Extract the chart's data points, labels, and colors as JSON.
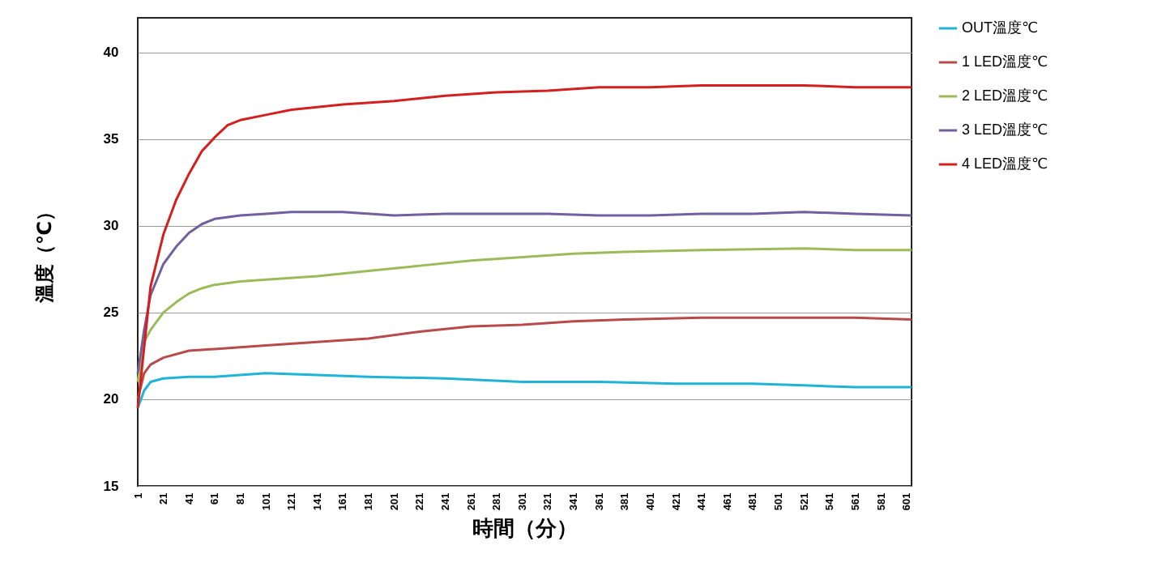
{
  "chart_data": {
    "type": "line",
    "xlabel": "時間（分）",
    "ylabel": "溫度（℃）",
    "xlim": [
      1,
      605
    ],
    "xticks": [
      1,
      21,
      41,
      61,
      81,
      101,
      121,
      141,
      161,
      181,
      201,
      221,
      241,
      261,
      281,
      301,
      321,
      341,
      361,
      381,
      401,
      421,
      441,
      461,
      481,
      501,
      521,
      541,
      561,
      581,
      601
    ],
    "ylim": [
      15,
      42
    ],
    "yticks": [
      15,
      20,
      25,
      30,
      35,
      40
    ],
    "grid": "y",
    "legend": "right",
    "marker": "none",
    "line_style": "solid",
    "series": [
      {
        "name": "OUT溫度℃",
        "color": "#1fb4d6",
        "x": [
          1,
          6,
          11,
          21,
          41,
          61,
          81,
          101,
          141,
          181,
          241,
          301,
          361,
          421,
          481,
          521,
          561,
          605
        ],
        "values": [
          19.5,
          20.5,
          21,
          21.2,
          21.3,
          21.3,
          21.4,
          21.5,
          21.4,
          21.3,
          21.2,
          21.0,
          21.0,
          20.9,
          20.9,
          20.8,
          20.7,
          20.7
        ]
      },
      {
        "name": "1 LED溫度℃",
        "color": "#b84a4a",
        "x": [
          1,
          6,
          11,
          21,
          41,
          61,
          101,
          141,
          181,
          221,
          261,
          301,
          341,
          381,
          441,
          521,
          561,
          605
        ],
        "values": [
          20,
          21.5,
          22,
          22.4,
          22.8,
          22.9,
          23.1,
          23.3,
          23.5,
          23.9,
          24.2,
          24.3,
          24.5,
          24.6,
          24.7,
          24.7,
          24.7,
          24.6
        ]
      },
      {
        "name": "2 LED溫度℃",
        "color": "#9bbb59",
        "x": [
          1,
          6,
          11,
          21,
          31,
          41,
          51,
          61,
          81,
          101,
          141,
          181,
          221,
          261,
          301,
          341,
          381,
          441,
          521,
          561,
          605
        ],
        "values": [
          21,
          23.3,
          24,
          25,
          25.6,
          26.1,
          26.4,
          26.6,
          26.8,
          26.9,
          27.1,
          27.4,
          27.7,
          28.0,
          28.2,
          28.4,
          28.5,
          28.6,
          28.7,
          28.6,
          28.6
        ]
      },
      {
        "name": "3 LED溫度℃",
        "color": "#7060a0",
        "x": [
          1,
          6,
          11,
          21,
          31,
          41,
          51,
          61,
          81,
          101,
          121,
          161,
          201,
          241,
          281,
          321,
          361,
          401,
          441,
          481,
          521,
          561,
          605
        ],
        "values": [
          21.5,
          24,
          26,
          27.8,
          28.8,
          29.6,
          30.1,
          30.4,
          30.6,
          30.7,
          30.8,
          30.8,
          30.6,
          30.7,
          30.7,
          30.7,
          30.6,
          30.6,
          30.7,
          30.7,
          30.8,
          30.7,
          30.6
        ]
      },
      {
        "name": "4 LED溫度℃",
        "color": "#d41f1f",
        "x": [
          1,
          6,
          11,
          21,
          31,
          41,
          51,
          61,
          71,
          81,
          101,
          121,
          161,
          201,
          241,
          281,
          321,
          361,
          401,
          441,
          481,
          521,
          561,
          605
        ],
        "values": [
          19.5,
          23,
          26.5,
          29.5,
          31.5,
          33,
          34.3,
          35.1,
          35.8,
          36.1,
          36.4,
          36.7,
          37.0,
          37.2,
          37.5,
          37.7,
          37.8,
          38.0,
          38.0,
          38.1,
          38.1,
          38.1,
          38.0,
          38.0
        ]
      }
    ]
  }
}
